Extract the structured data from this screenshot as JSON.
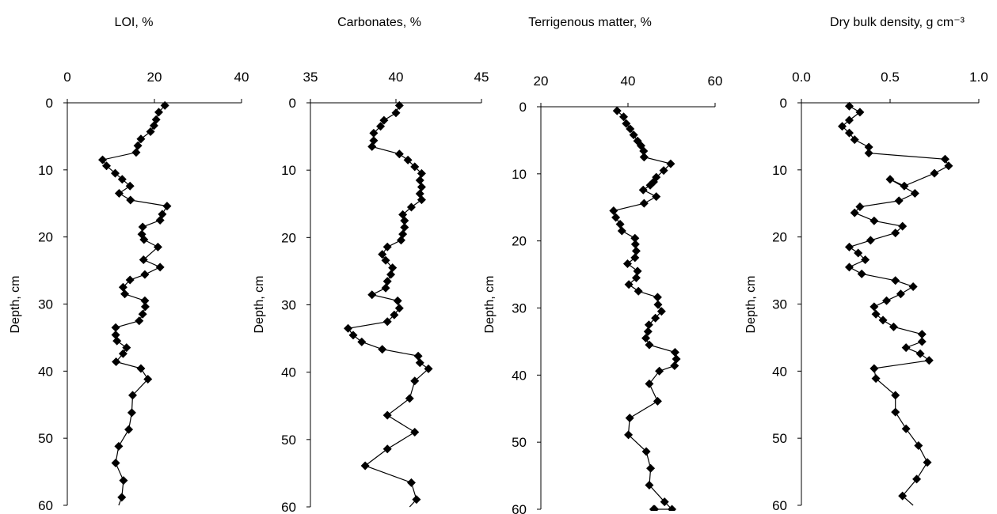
{
  "chart_data": [
    {
      "type": "line",
      "title": "LOI, %",
      "ylabel": "Depth, cm",
      "xlim": [
        0,
        40
      ],
      "xticks": [
        0,
        20,
        40
      ],
      "ylim": [
        0,
        60
      ],
      "yticks": [
        0,
        10,
        20,
        30,
        40,
        50,
        60
      ],
      "y_inverted": true,
      "x_axis_position": "top",
      "grid": false,
      "series": [
        {
          "marker": "diamond",
          "x": [
            22.4,
            21.0,
            20.4,
            19.9,
            19.1,
            16.9,
            16.2,
            15.8,
            8.1,
            9.0,
            11.0,
            12.6,
            14.4,
            11.9,
            14.5,
            22.9,
            21.8,
            21.3,
            17.3,
            17.1,
            17.6,
            20.8,
            17.5,
            21.3,
            17.8,
            14.4,
            12.8,
            13.2,
            17.8,
            17.9,
            17.3,
            16.5,
            11.1,
            11.1,
            11.4,
            13.6,
            12.8,
            11.2,
            16.9,
            18.5,
            15.0,
            14.8,
            14.1,
            11.8,
            11.1,
            12.9,
            12.5,
            11.8
          ],
          "y": [
            0.4,
            1.4,
            2.5,
            3.4,
            4.3,
            5.4,
            6.4,
            7.4,
            8.5,
            9.4,
            10.5,
            11.4,
            12.4,
            13.5,
            14.5,
            15.4,
            16.6,
            17.5,
            18.5,
            19.6,
            20.4,
            21.5,
            23.4,
            24.5,
            25.6,
            26.4,
            27.5,
            28.5,
            29.5,
            30.4,
            31.5,
            32.5,
            33.5,
            34.6,
            35.5,
            36.5,
            37.4,
            38.6,
            39.6,
            41.2,
            43.6,
            46.2,
            48.7,
            51.2,
            53.7,
            56.3,
            58.8,
            60.0
          ]
        }
      ]
    },
    {
      "type": "line",
      "title": "Carbonates, %",
      "ylabel": "Depth, cm",
      "xlim": [
        35,
        45
      ],
      "xticks": [
        35,
        40,
        45
      ],
      "ylim": [
        0,
        60
      ],
      "yticks": [
        0,
        10,
        20,
        30,
        40,
        50,
        60
      ],
      "y_inverted": true,
      "x_axis_position": "top",
      "grid": false,
      "series": [
        {
          "marker": "diamond",
          "x": [
            40.2,
            40.0,
            39.3,
            39.1,
            38.7,
            38.7,
            38.6,
            40.2,
            40.7,
            41.1,
            41.5,
            41.4,
            41.5,
            41.4,
            41.5,
            40.9,
            40.4,
            40.5,
            40.5,
            40.4,
            40.3,
            39.5,
            39.2,
            39.4,
            39.8,
            39.7,
            39.5,
            39.4,
            38.6,
            40.1,
            40.2,
            39.9,
            39.5,
            37.2,
            37.5,
            38.0,
            39.2,
            41.3,
            41.4,
            41.9,
            41.1,
            40.8,
            39.5,
            41.1,
            39.5,
            38.2,
            40.9,
            41.2,
            40.8
          ],
          "y": [
            0.4,
            1.5,
            2.6,
            3.5,
            4.5,
            5.6,
            6.5,
            7.6,
            8.5,
            9.5,
            10.5,
            11.5,
            12.5,
            13.5,
            14.4,
            15.5,
            16.6,
            17.5,
            18.5,
            19.5,
            20.4,
            21.4,
            22.5,
            23.4,
            24.5,
            25.5,
            26.5,
            27.5,
            28.5,
            29.4,
            30.5,
            31.5,
            32.5,
            33.5,
            34.5,
            35.5,
            36.6,
            37.6,
            38.6,
            39.5,
            41.3,
            43.9,
            46.4,
            48.9,
            51.4,
            53.9,
            56.4,
            58.9,
            60.0
          ]
        }
      ]
    },
    {
      "type": "line",
      "title": "Terrigenous matter, %",
      "ylabel": "Depth, cm",
      "xlim": [
        20,
        60
      ],
      "xticks": [
        20,
        40,
        60
      ],
      "ylim": [
        0,
        60
      ],
      "yticks": [
        0,
        10,
        20,
        30,
        40,
        50,
        60
      ],
      "y_inverted": true,
      "x_axis_position": "top",
      "grid": false,
      "series": [
        {
          "marker": "diamond",
          "x": [
            37.5,
            39.0,
            39.6,
            40.5,
            41.3,
            42.2,
            43.0,
            43.6,
            43.7,
            43.7,
            49.8,
            48.2,
            46.5,
            45.9,
            45.1,
            43.5,
            46.5,
            43.7,
            36.7,
            37.2,
            38.2,
            38.6,
            41.6,
            41.7,
            41.9,
            41.6,
            39.9,
            42.2,
            41.9,
            40.2,
            42.4,
            46.8,
            46.9,
            47.7,
            46.3,
            44.8,
            44.6,
            44.1,
            44.9,
            50.8,
            51.1,
            50.7,
            47.2,
            44.9,
            46.8,
            40.4,
            40.1,
            44.2,
            45.2,
            44.9,
            48.4,
            50.1,
            46.1,
            45.9,
            46.5
          ],
          "y": [
            0.6,
            1.5,
            2.5,
            3.3,
            4.2,
            5.1,
            5.8,
            6.6,
            7.5,
            7.5,
            8.5,
            9.5,
            10.5,
            11.2,
            11.7,
            12.4,
            13.4,
            14.4,
            15.5,
            16.5,
            17.5,
            18.5,
            19.6,
            20.5,
            21.5,
            22.5,
            23.4,
            24.5,
            25.5,
            26.5,
            27.5,
            28.4,
            29.5,
            30.5,
            31.5,
            32.5,
            33.5,
            34.5,
            35.5,
            36.6,
            37.6,
            38.6,
            39.4,
            41.3,
            43.9,
            46.4,
            48.9,
            51.4,
            53.9,
            56.4,
            58.9,
            60.0,
            60.0,
            60.0,
            60.0
          ]
        }
      ]
    },
    {
      "type": "line",
      "title": "Dry bulk density, g cm⁻³",
      "ylabel": "Depth, cm",
      "xlim": [
        0.0,
        1.0
      ],
      "xticks": [
        "0.0",
        "0.5",
        "1.0"
      ],
      "ylim": [
        0,
        60
      ],
      "yticks": [
        0,
        10,
        20,
        30,
        40,
        50,
        60
      ],
      "y_inverted": true,
      "x_axis_position": "top",
      "grid": false,
      "series": [
        {
          "marker": "diamond",
          "x": [
            0.27,
            0.33,
            0.27,
            0.23,
            0.27,
            0.3,
            0.38,
            0.38,
            0.81,
            0.83,
            0.75,
            0.58,
            0.5,
            0.64,
            0.55,
            0.33,
            0.3,
            0.41,
            0.57,
            0.53,
            0.39,
            0.27,
            0.32,
            0.36,
            0.27,
            0.34,
            0.53,
            0.63,
            0.56,
            0.48,
            0.41,
            0.42,
            0.46,
            0.52,
            0.68,
            0.68,
            0.59,
            0.67,
            0.72,
            0.41,
            0.42,
            0.53,
            0.53,
            0.59,
            0.66,
            0.71,
            0.65,
            0.57,
            0.63
          ],
          "y": [
            0.5,
            1.4,
            2.6,
            3.5,
            4.5,
            5.5,
            6.6,
            7.5,
            8.4,
            9.4,
            10.5,
            12.4,
            11.4,
            13.5,
            14.6,
            15.5,
            16.4,
            17.6,
            18.4,
            19.4,
            20.5,
            21.5,
            22.4,
            23.4,
            24.5,
            25.5,
            26.5,
            27.4,
            28.5,
            29.5,
            30.4,
            31.5,
            32.4,
            33.4,
            34.5,
            35.6,
            36.5,
            37.4,
            38.4,
            39.6,
            41.1,
            43.6,
            46.1,
            48.6,
            51.1,
            53.6,
            56.1,
            58.6,
            60.0
          ]
        }
      ]
    }
  ]
}
